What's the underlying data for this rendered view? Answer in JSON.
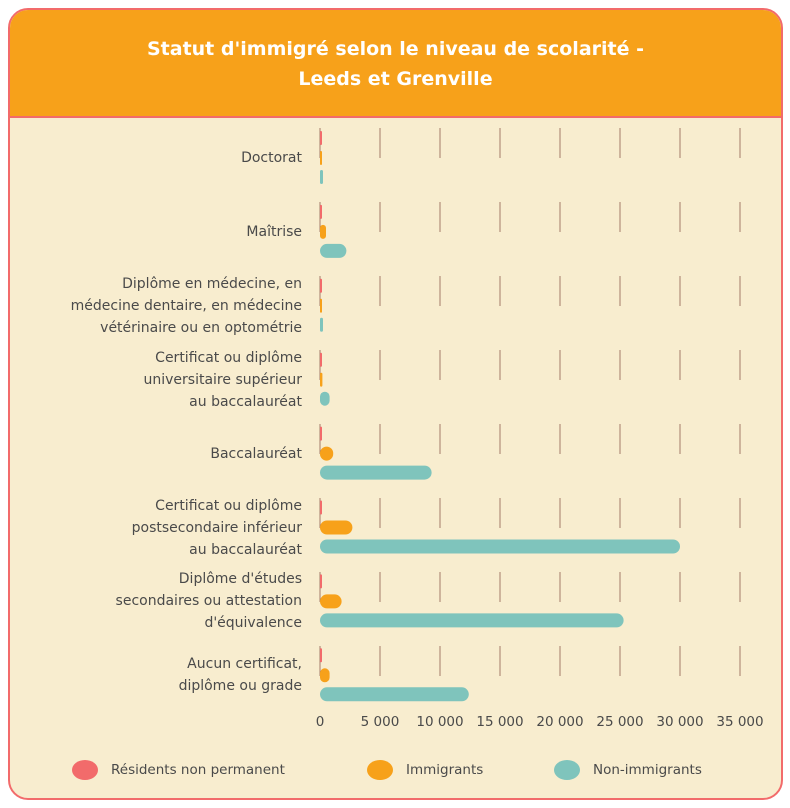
{
  "chart_data": {
    "type": "barh",
    "title": "Statut d'immigré selon le niveau de scolarité -\nLeeds et Grenville",
    "categories": [
      "Doctorat",
      "Maîtrise",
      "Diplôme en médecine, en\nmédecine dentaire, en médecine\nvétérinaire ou en optométrie",
      "Certificat ou diplôme\nuniversitaire supérieur\nau baccalauréat",
      "Baccalauréat",
      "Certificat ou diplôme\npostsecondaire inférieur\nau baccalauréat",
      "Diplôme d'études\nsecondaires ou attestation\nd'équivalence",
      "Aucun certificat,\ndiplôme ou grade"
    ],
    "series": [
      {
        "name": "Résidents non permanent",
        "color": "#f26b6b",
        "values": [
          10,
          20,
          0,
          10,
          40,
          60,
          50,
          30
        ]
      },
      {
        "name": "Immigrants",
        "color": "#f7a11a",
        "values": [
          150,
          500,
          60,
          200,
          1100,
          2700,
          1800,
          800
        ]
      },
      {
        "name": "Non-immigrants",
        "color": "#7fc4bc",
        "values": [
          250,
          2200,
          250,
          800,
          9300,
          30000,
          25300,
          12400
        ]
      }
    ],
    "xlim": [
      0,
      35000
    ],
    "xticks": [
      0,
      {
        "value": 5000,
        "label": "5 000"
      },
      {
        "value": 10000,
        "label": "10 000"
      },
      {
        "value": 15000,
        "label": "15 000"
      },
      {
        "value": 20000,
        "label": "20 000"
      },
      {
        "value": 25000,
        "label": "25 000"
      },
      {
        "value": 30000,
        "label": "30 000"
      },
      {
        "value": 35000,
        "label": "35 000"
      }
    ],
    "grid": true,
    "legend": "bottom"
  }
}
